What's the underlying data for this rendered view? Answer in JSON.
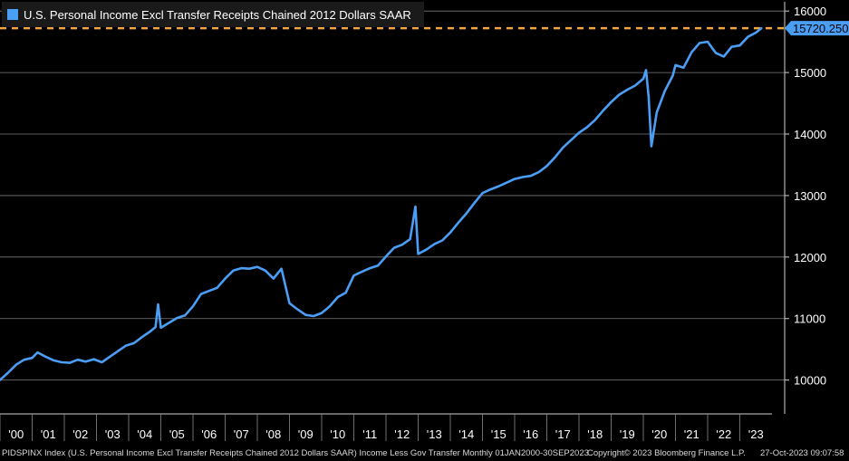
{
  "chart_data": {
    "type": "line",
    "title": "U.S. Personal Income Excl Transfer Receipts Chained 2012 Dollars SAAR",
    "xlabel": "",
    "ylabel": "",
    "ylim": [
      9450,
      16150
    ],
    "y_ticks": [
      10000,
      11000,
      12000,
      13000,
      14000,
      15000,
      16000
    ],
    "x_tick_labels": [
      "'00",
      "'01",
      "'02",
      "'03",
      "'04",
      "'05",
      "'06",
      "'07",
      "'08",
      "'09",
      "'10",
      "'11",
      "'12",
      "'13",
      "'14",
      "'15",
      "'16",
      "'17",
      "'18",
      "'19",
      "'20",
      "'21",
      "'22",
      "'23"
    ],
    "x_range": [
      "2000-01",
      "2023-12"
    ],
    "last_value_label": "15720.250",
    "last_value": 15720.25,
    "grid": "horizontal",
    "legend_position": "top-left",
    "series": [
      {
        "name": "U.S. Personal Income Excl Transfer Receipts Chained 2012 Dollars SAAR",
        "color": "#4b9ef5",
        "points": [
          [
            "2000-01",
            10000
          ],
          [
            "2000-04",
            10120
          ],
          [
            "2000-07",
            10250
          ],
          [
            "2000-10",
            10330
          ],
          [
            "2001-01",
            10360
          ],
          [
            "2001-03",
            10450
          ],
          [
            "2001-06",
            10380
          ],
          [
            "2001-09",
            10320
          ],
          [
            "2001-12",
            10290
          ],
          [
            "2002-03",
            10280
          ],
          [
            "2002-06",
            10330
          ],
          [
            "2002-09",
            10300
          ],
          [
            "2002-12",
            10340
          ],
          [
            "2003-03",
            10290
          ],
          [
            "2003-06",
            10380
          ],
          [
            "2003-09",
            10470
          ],
          [
            "2003-12",
            10560
          ],
          [
            "2004-03",
            10600
          ],
          [
            "2004-06",
            10700
          ],
          [
            "2004-09",
            10790
          ],
          [
            "2004-11",
            10860
          ],
          [
            "2004-12",
            11230
          ],
          [
            "2005-01",
            10850
          ],
          [
            "2005-04",
            10930
          ],
          [
            "2005-07",
            11010
          ],
          [
            "2005-10",
            11050
          ],
          [
            "2006-01",
            11200
          ],
          [
            "2006-04",
            11400
          ],
          [
            "2006-07",
            11450
          ],
          [
            "2006-10",
            11500
          ],
          [
            "2007-01",
            11650
          ],
          [
            "2007-04",
            11780
          ],
          [
            "2007-07",
            11820
          ],
          [
            "2007-10",
            11810
          ],
          [
            "2008-01",
            11840
          ],
          [
            "2008-04",
            11780
          ],
          [
            "2008-07",
            11650
          ],
          [
            "2008-10",
            11810
          ],
          [
            "2009-01",
            11250
          ],
          [
            "2009-04",
            11150
          ],
          [
            "2009-07",
            11060
          ],
          [
            "2009-10",
            11040
          ],
          [
            "2010-01",
            11090
          ],
          [
            "2010-04",
            11200
          ],
          [
            "2010-07",
            11350
          ],
          [
            "2010-10",
            11420
          ],
          [
            "2011-01",
            11700
          ],
          [
            "2011-04",
            11760
          ],
          [
            "2011-07",
            11820
          ],
          [
            "2011-10",
            11860
          ],
          [
            "2012-01",
            12010
          ],
          [
            "2012-04",
            12150
          ],
          [
            "2012-07",
            12200
          ],
          [
            "2012-10",
            12290
          ],
          [
            "2012-12",
            12820
          ],
          [
            "2013-01",
            12050
          ],
          [
            "2013-04",
            12120
          ],
          [
            "2013-07",
            12210
          ],
          [
            "2013-10",
            12270
          ],
          [
            "2014-01",
            12400
          ],
          [
            "2014-04",
            12560
          ],
          [
            "2014-07",
            12710
          ],
          [
            "2014-10",
            12880
          ],
          [
            "2015-01",
            13040
          ],
          [
            "2015-04",
            13100
          ],
          [
            "2015-07",
            13150
          ],
          [
            "2015-10",
            13210
          ],
          [
            "2016-01",
            13270
          ],
          [
            "2016-04",
            13300
          ],
          [
            "2016-07",
            13320
          ],
          [
            "2016-10",
            13380
          ],
          [
            "2017-01",
            13480
          ],
          [
            "2017-04",
            13620
          ],
          [
            "2017-07",
            13780
          ],
          [
            "2017-10",
            13900
          ],
          [
            "2018-01",
            14020
          ],
          [
            "2018-04",
            14110
          ],
          [
            "2018-07",
            14230
          ],
          [
            "2018-10",
            14380
          ],
          [
            "2019-01",
            14520
          ],
          [
            "2019-04",
            14640
          ],
          [
            "2019-07",
            14720
          ],
          [
            "2019-10",
            14790
          ],
          [
            "2020-01",
            14900
          ],
          [
            "2020-02",
            15040
          ],
          [
            "2020-03",
            14600
          ],
          [
            "2020-04",
            13800
          ],
          [
            "2020-06",
            14350
          ],
          [
            "2020-09",
            14700
          ],
          [
            "2020-12",
            14950
          ],
          [
            "2021-01",
            15120
          ],
          [
            "2021-04",
            15080
          ],
          [
            "2021-07",
            15330
          ],
          [
            "2021-10",
            15480
          ],
          [
            "2022-01",
            15500
          ],
          [
            "2022-04",
            15320
          ],
          [
            "2022-07",
            15260
          ],
          [
            "2022-10",
            15420
          ],
          [
            "2023-01",
            15440
          ],
          [
            "2023-04",
            15580
          ],
          [
            "2023-07",
            15650
          ],
          [
            "2023-09",
            15720.25
          ]
        ]
      }
    ],
    "reference_line": {
      "value": 15720.25,
      "color": "#f5a53a",
      "style": "dashed"
    }
  },
  "footer": {
    "left": "PIDSPINX Index (U.S. Personal Income Excl Transfer Receipts Chained 2012 Dollars SAAR) Income Less Gov Transfer  Monthly 01JAN2000-30SEP2023",
    "center": "Copyright© 2023 Bloomberg Finance L.P.",
    "right": "27-Oct-2023 09:07:58"
  }
}
